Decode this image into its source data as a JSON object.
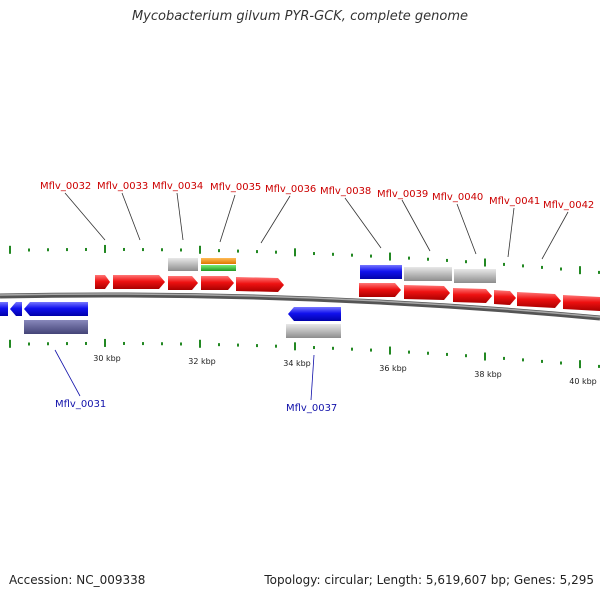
{
  "title": "Mycobacterium gilvum PYR-GCK, complete genome",
  "footer": {
    "accession": "Accession: NC_009338",
    "summary": "Topology: circular; Length: 5,619,607 bp; Genes: 5,295"
  },
  "colors": {
    "forward_cds": "#ee1111",
    "reverse_cds": "#1111ee",
    "gray_feature": "#bbbbbb",
    "orange_feature": "#ee8800",
    "green_feature": "#33bb33",
    "purple_feature": "#55558a",
    "tick": "#228822",
    "backbone": "#888888",
    "top_label": "#cc0000",
    "bottom_label": "#1111aa"
  },
  "scale_labels": [
    "30 kbp",
    "32 kbp",
    "34 kbp",
    "36 kbp",
    "38 kbp",
    "40 kbp"
  ],
  "top_labels": [
    "Mflv_0032",
    "Mflv_0033",
    "Mflv_0034",
    "Mflv_0035",
    "Mflv_0036",
    "Mflv_0038",
    "Mflv_0039",
    "Mflv_0040",
    "Mflv_0041",
    "Mflv_0042"
  ],
  "bottom_labels": [
    "Mflv_0031",
    "Mflv_0037"
  ]
}
